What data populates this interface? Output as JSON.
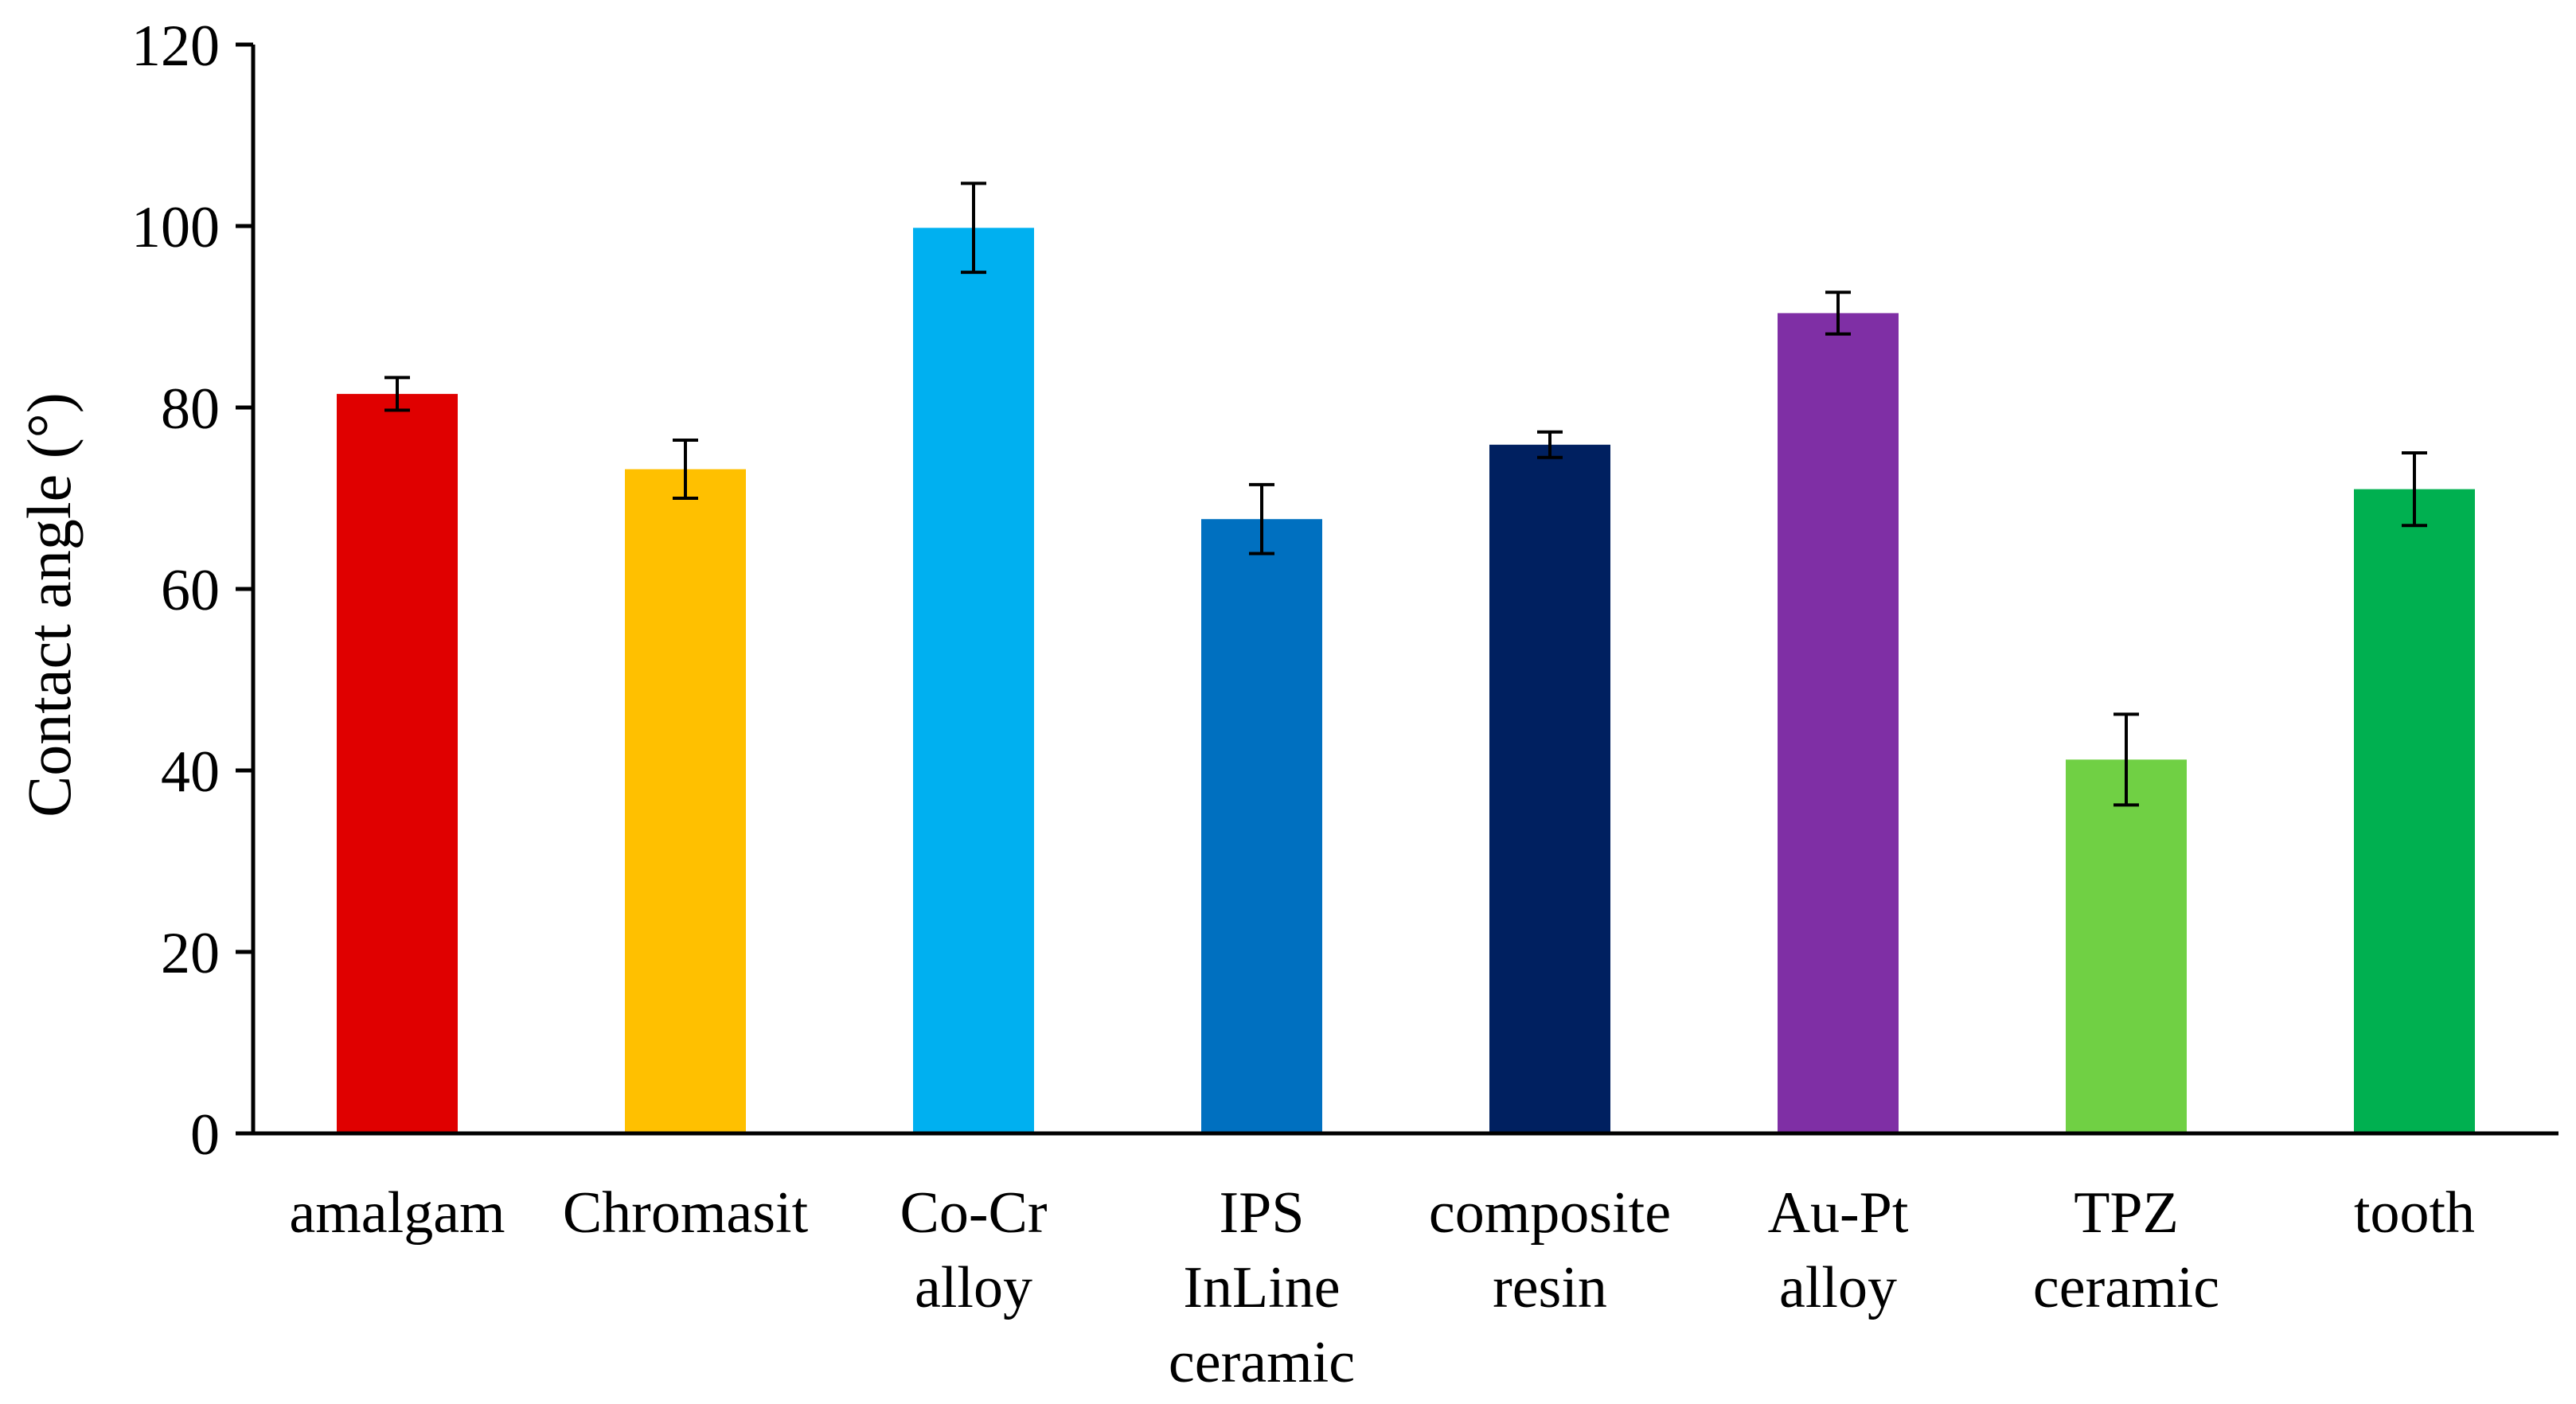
{
  "chart_data": {
    "type": "bar",
    "title": "",
    "xlabel": "",
    "ylabel": "Contact angle (°)",
    "ylim": [
      0,
      120
    ],
    "yticks": [
      "0",
      "20",
      "40",
      "60",
      "80",
      "100",
      "120"
    ],
    "ytick_values": [
      0,
      20,
      40,
      60,
      80,
      100,
      120
    ],
    "grid": false,
    "legend": "none",
    "categories": [
      {
        "lines": [
          "amalgam"
        ]
      },
      {
        "lines": [
          "Chromasit"
        ]
      },
      {
        "lines": [
          "Co-Cr",
          "alloy"
        ]
      },
      {
        "lines": [
          "IPS",
          "InLine",
          "ceramic"
        ]
      },
      {
        "lines": [
          "composite",
          "resin"
        ]
      },
      {
        "lines": [
          "Au-Pt",
          "alloy"
        ]
      },
      {
        "lines": [
          "TPZ",
          "ceramic"
        ]
      },
      {
        "lines": [
          "tooth"
        ]
      }
    ],
    "values": [
      81.5,
      73.2,
      99.8,
      67.7,
      75.9,
      90.4,
      41.2,
      71.0
    ],
    "errors": [
      1.8,
      3.2,
      4.9,
      3.8,
      1.4,
      2.3,
      5.0,
      4.0
    ],
    "colors": [
      "#E00000",
      "#FFC000",
      "#00B0F0",
      "#0070C0",
      "#002060",
      "#7F2FA5",
      "#70D044",
      "#00B050"
    ]
  }
}
